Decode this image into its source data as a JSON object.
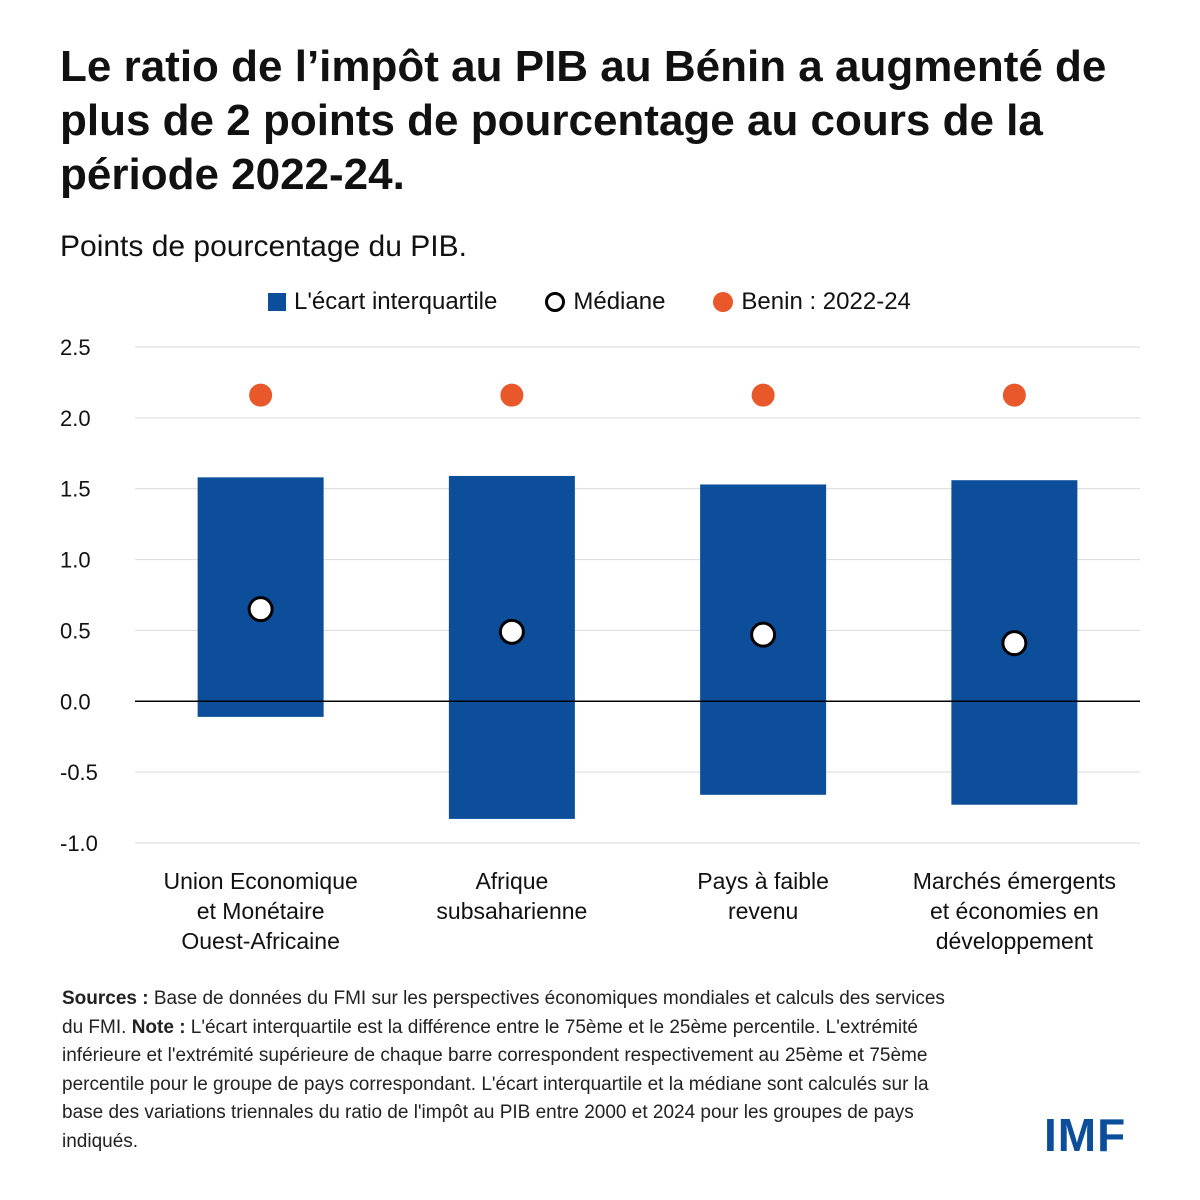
{
  "title": "Le ratio de l’impôt au PIB au Bénin a augmenté de plus de 2 points de pourcentage au cours de la période 2022-24.",
  "subtitle": "Points de pourcentage du PIB.",
  "legend": {
    "iqr": "L'écart interquartile",
    "median": "Médiane",
    "benin": "Benin : 2022-24"
  },
  "colors": {
    "bar": "#0d4e9b",
    "benin": "#e8582a",
    "grid": "#d9d9d9",
    "zero": "#000000"
  },
  "chart_data": {
    "type": "bar",
    "subtype": "floating-range with markers",
    "categories": [
      [
        "Union Economique",
        "et Monétaire",
        "Ouest-Africaine"
      ],
      [
        "Afrique",
        "subsaharienne"
      ],
      [
        "Pays à faible",
        "revenu"
      ],
      [
        "Marchés émergents",
        "et économies en",
        "développement"
      ]
    ],
    "series": [
      {
        "name": "L'écart interquartile (25ème percentile)",
        "values": [
          -0.11,
          -0.83,
          -0.66,
          -0.73
        ]
      },
      {
        "name": "L'écart interquartile (75ème percentile)",
        "values": [
          1.58,
          1.59,
          1.53,
          1.56
        ]
      },
      {
        "name": "Médiane",
        "values": [
          0.65,
          0.49,
          0.47,
          0.41
        ]
      },
      {
        "name": "Benin : 2022-24",
        "values": [
          2.16,
          2.16,
          2.16,
          2.16
        ]
      }
    ],
    "yticks": [
      "2.5",
      "2.0",
      "1.5",
      "1.0",
      "0.5",
      "0.0",
      "-0.5",
      "-1.0"
    ],
    "ylim": [
      -1.0,
      2.5
    ],
    "xlabel": "",
    "ylabel": "",
    "grid": true,
    "legend_position": "top"
  },
  "notes": {
    "sources_label": "Sources :",
    "sources_text": " Base de données du FMI sur les perspectives économiques mondiales et calculs des services du FMI. ",
    "note_label": "Note :",
    "note_text": " L'écart interquartile est la différence entre le 75ème et le 25ème percentile. L'extrémité inférieure et l'extrémité supérieure de chaque barre correspondent respectivement au 25ème et 75ème percentile pour le groupe de pays correspondant. L'écart interquartile et la médiane sont calculés sur la base des variations triennales du ratio de l'impôt au PIB entre 2000 et 2024 pour les groupes de pays indiqués."
  },
  "logo": "IMF"
}
